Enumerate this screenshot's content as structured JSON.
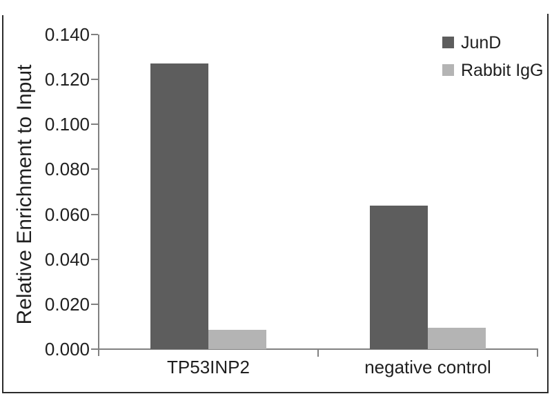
{
  "chart_data": {
    "type": "bar",
    "title": "",
    "xlabel": "",
    "ylabel": "Relative Enrichment to Input",
    "categories": [
      "TP53INP2",
      "negative control"
    ],
    "series": [
      {
        "name": "JunD",
        "color": "#5d5d5d",
        "values": [
          0.127,
          0.064
        ]
      },
      {
        "name": "Rabbit IgG",
        "color": "#b4b4b4",
        "values": [
          0.0085,
          0.0095
        ]
      }
    ],
    "ylim": [
      0,
      0.14
    ],
    "ytick_values": [
      0.0,
      0.02,
      0.04,
      0.06,
      0.08,
      0.1,
      0.12,
      0.14
    ],
    "ytick_labels": [
      "0.000",
      "0.020",
      "0.040",
      "0.060",
      "0.080",
      "0.100",
      "0.120",
      "0.140"
    ],
    "grid": false,
    "legend_position": "top-right",
    "legend_entries": [
      "JunD",
      "Rabbit IgG"
    ]
  },
  "colors": {
    "background": "#ffffff",
    "axis": "#808080",
    "text": "#1f1f1f",
    "frame": "#2b2b2b",
    "series_dark": "#5d5d5d",
    "series_light": "#b4b4b4"
  }
}
